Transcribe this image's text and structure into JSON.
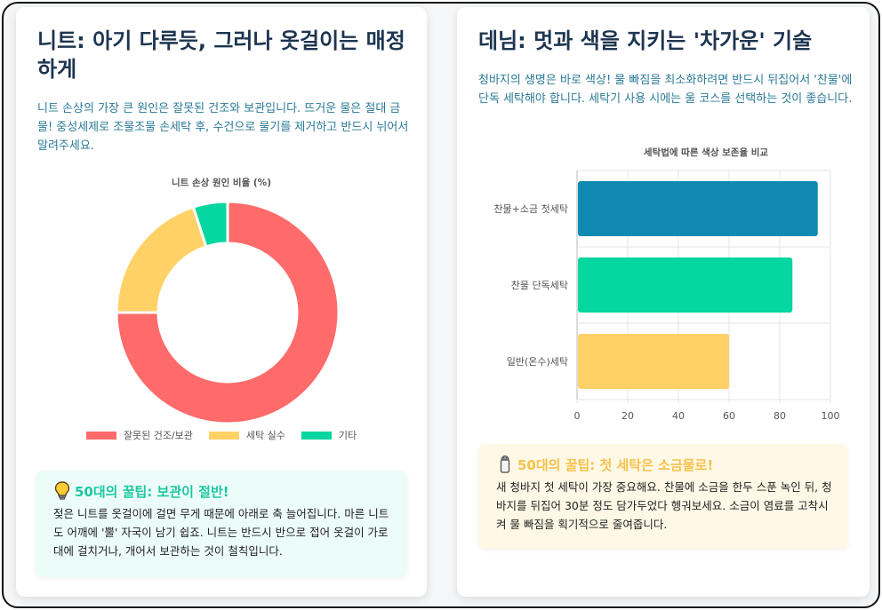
{
  "knit": {
    "title": "니트: 아기 다루듯, 그러나 옷걸이는 매정하게",
    "description": "니트 손상의 가장 큰 원인은 잘못된 건조와 보관입니다. 뜨거운 물은 절대 금물! 중성세제로 조물조물 손세탁 후, 수건으로 물기를 제거하고 반드시 뉘어서 말려주세요.",
    "tip": {
      "title": "50대의 꿀팁: 보관이 절반!",
      "icon": "lightbulb-icon",
      "body": "젖은 니트를 옷걸이에 걸면 무게 때문에 아래로 축 늘어집니다. 마른 니트도 어깨에 '뿔' 자국이 남기 쉽죠. 니트는 반드시 반으로 접어 옷걸이 가로대에 걸치거나, 개어서 보관하는 것이 철칙입니다."
    }
  },
  "denim": {
    "title": "데님: 멋과 색을 지키는 '차가운' 기술",
    "description": "청바지의 생명은 바로 색상! 물 빠짐을 최소화하려면 반드시 뒤집어서 '찬물'에 단독 세탁해야 합니다. 세탁기 사용 시에는 울 코스를 선택하는 것이 좋습니다.",
    "tip": {
      "title": "50대의 꿀팁: 첫 세탁은 소금물로!",
      "icon": "salt-shaker-icon",
      "body": "새 청바지 첫 세탁이 가장 중요해요. 찬물에 소금을 한두 스푼 녹인 뒤, 청바지를 뒤집어 30분 정도 담가두었다 헹궈보세요. 소금이 염료를 고착시켜 물 빠짐을 획기적으로 줄여줍니다."
    }
  },
  "chart_data": [
    {
      "type": "pie",
      "title": "니트 손상 원인 비율 (%)",
      "categories": [
        "잘못된 건조/보관",
        "세탁 실수",
        "기타"
      ],
      "values": [
        75,
        20,
        5
      ],
      "colors": [
        "#ff6b6b",
        "#ffd166",
        "#06d6a0"
      ],
      "donut": true,
      "legend": "bottom"
    },
    {
      "type": "bar",
      "orientation": "horizontal",
      "title": "세탁법에 따른 색상 보존율 비교",
      "categories": [
        "찬물+소금 첫세탁",
        "찬물 단독세탁",
        "일반(온수)세탁"
      ],
      "values": [
        95,
        85,
        60
      ],
      "colors": [
        "#118ab2",
        "#06d6a0",
        "#ffd166"
      ],
      "xlim": [
        0,
        100
      ],
      "xticks": [
        0,
        20,
        40,
        60,
        80,
        100
      ],
      "grid": true
    }
  ]
}
